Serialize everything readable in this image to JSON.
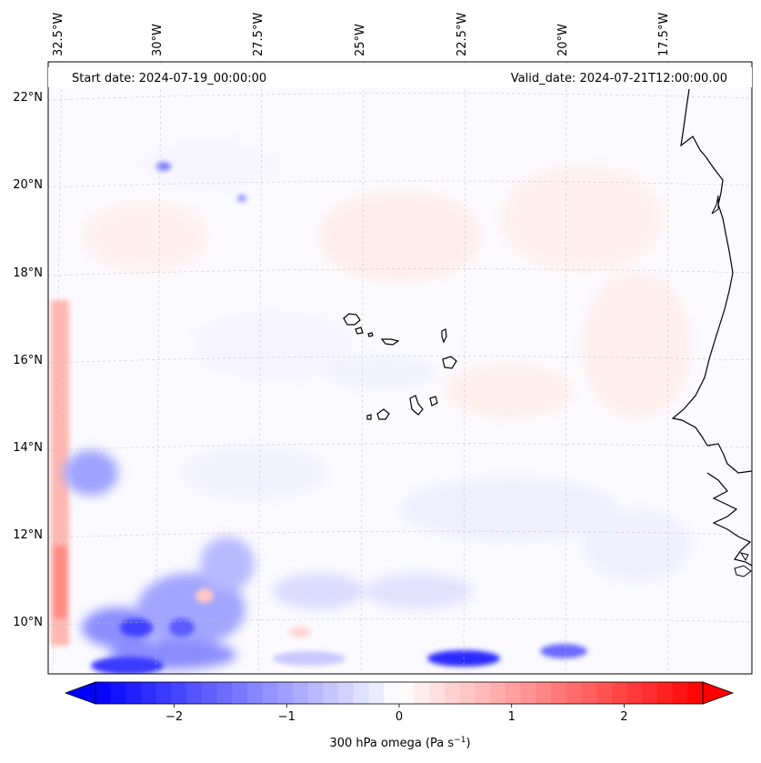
{
  "map": {
    "start_date": "Start date: 2024-07-19_00:00:00",
    "valid_date": "Valid_date: 2024-07-21T12:00:00.00",
    "lon_labels": [
      "32.5°W",
      "30°W",
      "27.5°W",
      "25°W",
      "22.5°W",
      "20°W",
      "17.5°W"
    ],
    "lat_labels": [
      "22°N",
      "20°N",
      "18°N",
      "16°N",
      "14°N",
      "12°N",
      "10°N"
    ],
    "gridlines": true,
    "field": "300 hPa omega",
    "islands": [
      "Santo Antão",
      "São Vicente",
      "Santa Luzia",
      "São Nicolau",
      "Sal",
      "Boa Vista",
      "Maio",
      "Santiago",
      "Fogo",
      "Brava"
    ]
  },
  "colorbar": {
    "label_main": "300 hPa omega (Pa s",
    "label_sup": "−1",
    "label_tail": ")",
    "ticks": [
      "−2",
      "−1",
      "0",
      "1",
      "2"
    ],
    "tick_values": [
      -2,
      -1,
      0,
      1,
      2
    ],
    "range": [
      -2.7,
      2.7
    ],
    "colormap": "bwr",
    "extend": "both",
    "colors": {
      "min": "#0000ff",
      "mid": "#ffffff",
      "max": "#ff0000"
    }
  }
}
